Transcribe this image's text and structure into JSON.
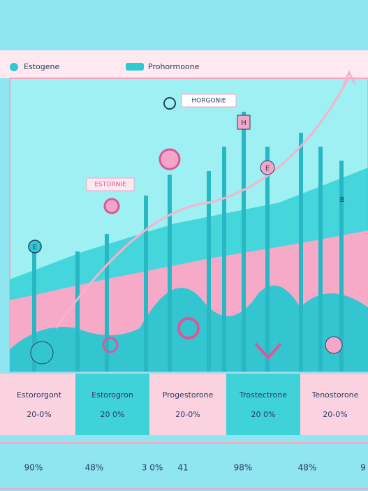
{
  "legend": {
    "items": [
      "Estogene",
      "Prohormoone"
    ]
  },
  "callouts": [
    "HORGONIE",
    "ESTORNIE"
  ],
  "node_letters": [
    "E",
    "H",
    "E",
    "B"
  ],
  "panels": [
    {
      "name": "Estororgont",
      "value": "20-0%"
    },
    {
      "name": "Estorogron",
      "value": "20 0%"
    },
    {
      "name": "Progestorone",
      "value": "20-0%"
    },
    {
      "name": "Trostectrone",
      "value": "20 0%"
    },
    {
      "name": "Tenostorone",
      "value": "20-0%"
    }
  ],
  "axis_labels": [
    "90%",
    "48%",
    "3 0%",
    "41",
    "98%",
    "48%",
    "9"
  ]
}
